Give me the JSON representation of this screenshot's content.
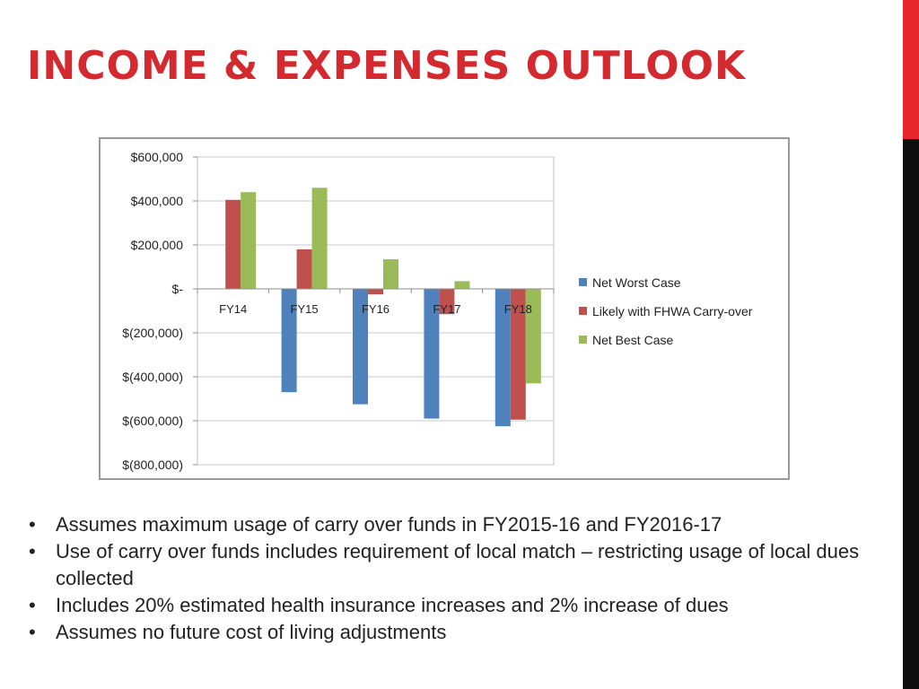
{
  "slide": {
    "title": "Income & Expenses Outlook",
    "accent_color": "#d42a2f",
    "side_bar_colors": [
      "#e8242c",
      "#0d0d0d"
    ]
  },
  "chart_data": {
    "type": "bar",
    "categories": [
      "FY14",
      "FY15",
      "FY16",
      "FY17",
      "FY18"
    ],
    "series": [
      {
        "name": "Net Worst Case",
        "color": "#4f81bd",
        "values": [
          0,
          -470000,
          -525000,
          -590000,
          -625000
        ]
      },
      {
        "name": "Likely with FHWA Carry-over",
        "color": "#c0504d",
        "values": [
          405000,
          180000,
          -25000,
          -115000,
          -595000
        ]
      },
      {
        "name": "Net Best Case",
        "color": "#9bbb59",
        "values": [
          440000,
          460000,
          135000,
          35000,
          -430000
        ]
      }
    ],
    "ylim": [
      -800000,
      600000
    ],
    "y_ticks": [
      600000,
      400000,
      200000,
      0,
      -200000,
      -400000,
      -600000,
      -800000
    ],
    "y_tick_labels": [
      "$600,000",
      "$400,000",
      "$200,000",
      "$-",
      "$(200,000)",
      "$(400,000)",
      "$(600,000)",
      "$(800,000)"
    ],
    "title": "",
    "xlabel": "",
    "ylabel": "",
    "grid": true,
    "legend_position": "right"
  },
  "bullets": [
    "Assumes maximum usage of carry over funds in FY2015-16 and FY2016-17",
    "Use of carry over funds includes requirement of local match – restricting usage of local dues collected",
    "Includes 20% estimated health insurance increases and 2% increase of dues",
    "Assumes no future cost of living adjustments"
  ]
}
